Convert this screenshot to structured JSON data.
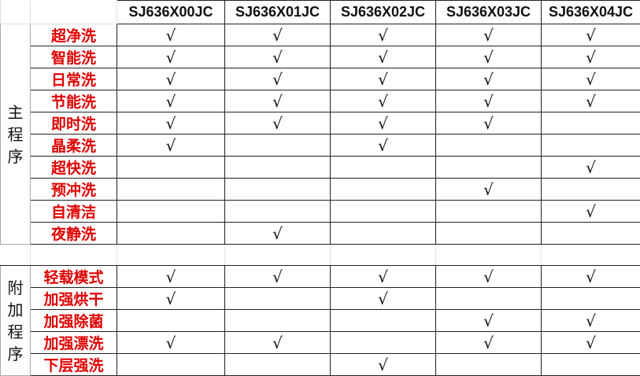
{
  "models": [
    "SJ636X00JC",
    "SJ636X01JC",
    "SJ636X02JC",
    "SJ636X03JC",
    "SJ636X04JC"
  ],
  "check_mark": "√",
  "groups": [
    {
      "name": "主\n程\n序",
      "rows": [
        {
          "label": "超净洗",
          "checks": [
            true,
            true,
            true,
            true,
            true
          ]
        },
        {
          "label": "智能洗",
          "checks": [
            true,
            true,
            true,
            true,
            true
          ]
        },
        {
          "label": "日常洗",
          "checks": [
            true,
            true,
            true,
            true,
            true
          ]
        },
        {
          "label": "节能洗",
          "checks": [
            true,
            true,
            true,
            true,
            true
          ]
        },
        {
          "label": "即时洗",
          "checks": [
            true,
            true,
            true,
            true,
            false
          ]
        },
        {
          "label": "晶柔洗",
          "checks": [
            true,
            false,
            true,
            false,
            false
          ]
        },
        {
          "label": "超快洗",
          "checks": [
            false,
            false,
            false,
            false,
            true
          ]
        },
        {
          "label": "预冲洗",
          "checks": [
            false,
            false,
            false,
            true,
            false
          ]
        },
        {
          "label": "自清洁",
          "checks": [
            false,
            false,
            false,
            false,
            true
          ]
        },
        {
          "label": "夜静洗",
          "checks": [
            false,
            true,
            false,
            false,
            false
          ]
        }
      ]
    },
    {
      "name": "附\n加\n程\n序",
      "rows": [
        {
          "label": "轻载模式",
          "checks": [
            true,
            true,
            true,
            true,
            true
          ]
        },
        {
          "label": "加强烘干",
          "checks": [
            true,
            false,
            true,
            false,
            false
          ]
        },
        {
          "label": "加强除菌",
          "checks": [
            false,
            false,
            false,
            true,
            true
          ]
        },
        {
          "label": "加强漂洗",
          "checks": [
            true,
            true,
            false,
            true,
            true
          ]
        },
        {
          "label": "下层强洗",
          "checks": [
            false,
            false,
            true,
            false,
            false
          ]
        }
      ]
    }
  ]
}
